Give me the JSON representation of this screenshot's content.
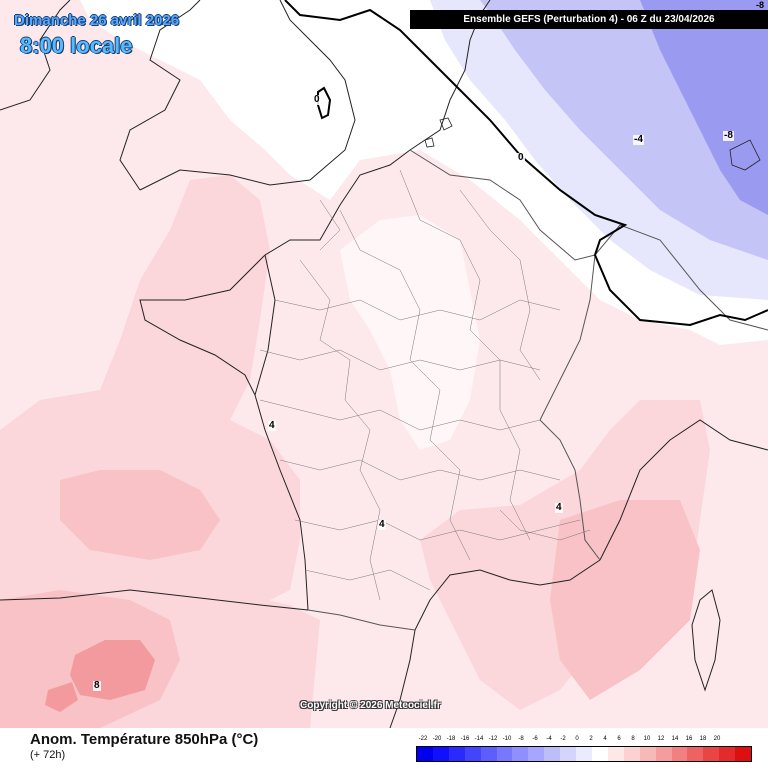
{
  "header": {
    "date": "Dimanche 26 avril 2026",
    "time": "8:00 locale",
    "model": "Ensemble GEFS  (Perturbation 4)  -  06 Z du 23/04/2026",
    "corner_value": "-8"
  },
  "contour_labels": [
    "0",
    "0",
    "-4",
    "-8",
    "4",
    "4",
    "4",
    "8"
  ],
  "copyright": "Copyright © 2026 Meteociel.fr",
  "footer": {
    "title": "Anom. Température 850hPa (°C)",
    "subtitle": "(+ 72h)"
  },
  "color_scale": {
    "labels": [
      "-22",
      "-20",
      "-18",
      "-16",
      "-14",
      "-12",
      "-10",
      "-8",
      "-6",
      "-4",
      "-2",
      "0",
      "2",
      "4",
      "6",
      "8",
      "10",
      "12",
      "14",
      "16",
      "18",
      "20"
    ],
    "colors": [
      "#0000ee",
      "#1010ff",
      "#2a2aff",
      "#4444ff",
      "#5e5eff",
      "#7777ff",
      "#8f8fff",
      "#a6a6ff",
      "#bdbdf8",
      "#d5d5fb",
      "#ebebfd",
      "#ffffff",
      "#fde8e8",
      "#fbd1d1",
      "#f8b8b8",
      "#f59d9d",
      "#f28080",
      "#ef6262",
      "#ea4545",
      "#e42a2a",
      "#dc1010"
    ]
  },
  "map_colors": {
    "anom_minus8": "#9a9af0",
    "anom_minus4": "#c4c4f7",
    "anom_minus2": "#e6e6fc",
    "anom_0": "#ffffff",
    "anom_plus2": "#fde9ec",
    "anom_plus4": "#fbd6da",
    "anom_plus6": "#f8c2c6",
    "anom_plus8": "#f39a9e",
    "coast": "#222222",
    "borders": "#555555",
    "contour": "#000000"
  }
}
